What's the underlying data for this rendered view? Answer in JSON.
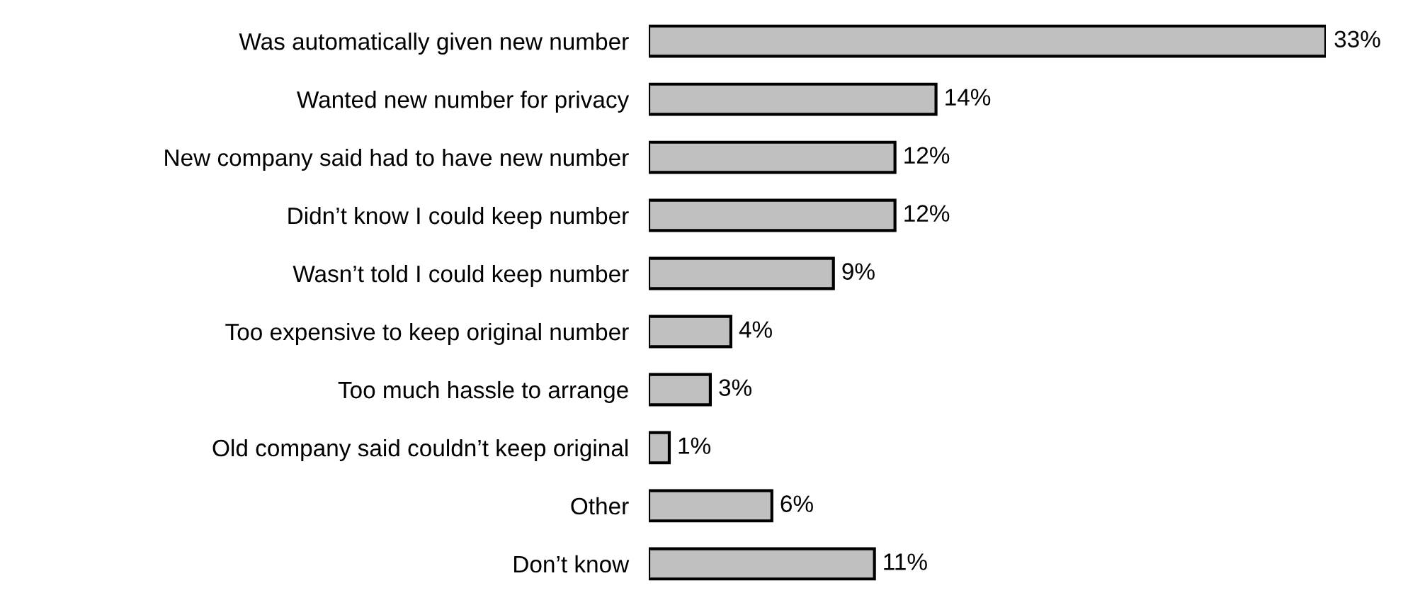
{
  "chart_data": {
    "type": "bar",
    "orientation": "horizontal",
    "categories": [
      "Was automatically given new number",
      "Wanted new number for privacy",
      "New company said had to have new number",
      "Didn’t know I could keep number",
      "Wasn’t told I could keep number",
      "Too expensive to keep original number",
      "Too much hassle to arrange",
      "Old company said couldn’t keep original",
      "Other",
      "Don’t know"
    ],
    "values": [
      33,
      14,
      12,
      12,
      9,
      4,
      3,
      1,
      6,
      11
    ],
    "value_labels": [
      "33%",
      "14%",
      "12%",
      "12%",
      "9%",
      "4%",
      "3%",
      "1%",
      "6%",
      "11%"
    ],
    "color": "#c0c0c0",
    "grid": false,
    "legend": false
  }
}
